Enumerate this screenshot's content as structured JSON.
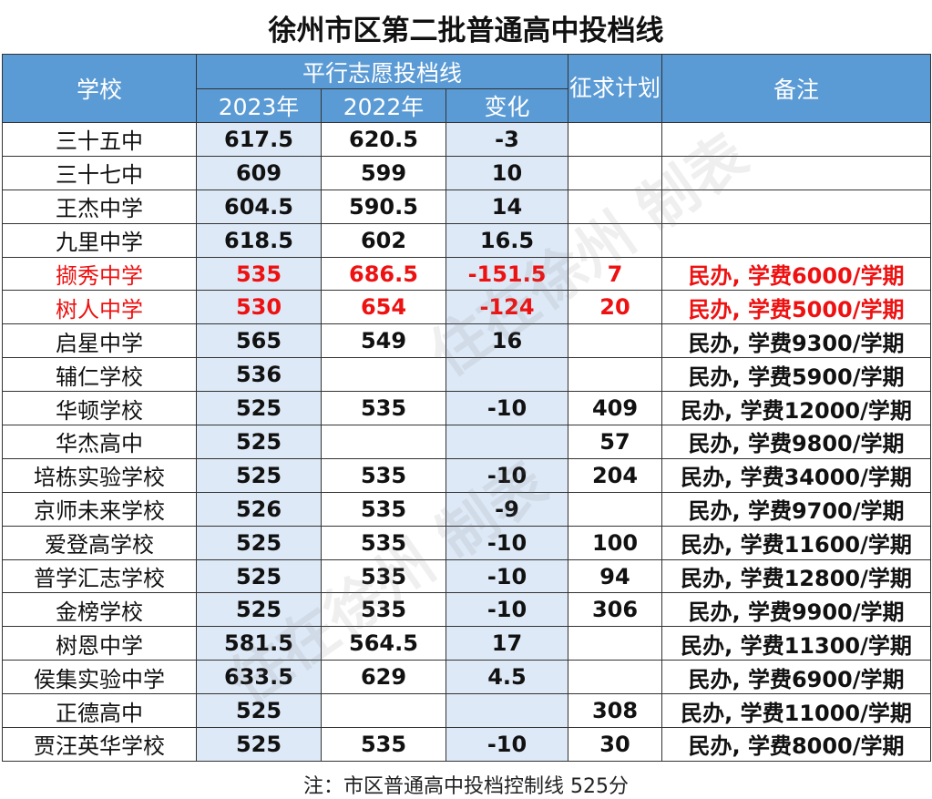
{
  "title": "徐州市区第二批普通高中投档线",
  "header": {
    "school": "学校",
    "group": "平行志愿投档线",
    "y2023": "2023年",
    "y2022": "2022年",
    "change": "变化",
    "plan": "征求计划",
    "note": "备注"
  },
  "rows": [
    {
      "school": "三十五中",
      "y2023": "617.5",
      "y2022": "620.5",
      "change": "-3",
      "plan": "",
      "note": ""
    },
    {
      "school": "三十七中",
      "y2023": "609",
      "y2022": "599",
      "change": "10",
      "plan": "",
      "note": ""
    },
    {
      "school": "王杰中学",
      "y2023": "604.5",
      "y2022": "590.5",
      "change": "14",
      "plan": "",
      "note": ""
    },
    {
      "school": "九里中学",
      "y2023": "618.5",
      "y2022": "602",
      "change": "16.5",
      "plan": "",
      "note": ""
    },
    {
      "school": "撷秀中学",
      "y2023": "535",
      "y2022": "686.5",
      "change": "-151.5",
      "plan": "7",
      "note": "民办, 学费6000/学期"
    },
    {
      "school": "树人中学",
      "y2023": "530",
      "y2022": "654",
      "change": "-124",
      "plan": "20",
      "note": "民办, 学费5000/学期"
    },
    {
      "school": "启星中学",
      "y2023": "565",
      "y2022": "549",
      "change": "16",
      "plan": "",
      "note": "民办, 学费9300/学期"
    },
    {
      "school": "辅仁学校",
      "y2023": "536",
      "y2022": "",
      "change": "",
      "plan": "",
      "note": "民办, 学费5900/学期"
    },
    {
      "school": "华顿学校",
      "y2023": "525",
      "y2022": "535",
      "change": "-10",
      "plan": "409",
      "note": "民办, 学费12000/学期"
    },
    {
      "school": "华杰高中",
      "y2023": "525",
      "y2022": "",
      "change": "",
      "plan": "57",
      "note": "民办, 学费9800/学期"
    },
    {
      "school": "培栋实验学校",
      "y2023": "525",
      "y2022": "535",
      "change": "-10",
      "plan": "204",
      "note": "民办, 学费34000/学期"
    },
    {
      "school": "京师未来学校",
      "y2023": "526",
      "y2022": "535",
      "change": "-9",
      "plan": "",
      "note": "民办, 学费9700/学期"
    },
    {
      "school": "爱登高学校",
      "y2023": "525",
      "y2022": "535",
      "change": "-10",
      "plan": "100",
      "note": "民办, 学费11600/学期"
    },
    {
      "school": "普学汇志学校",
      "y2023": "525",
      "y2022": "535",
      "change": "-10",
      "plan": "94",
      "note": "民办, 学费12800/学期"
    },
    {
      "school": "金榜学校",
      "y2023": "525",
      "y2022": "535",
      "change": "-10",
      "plan": "306",
      "note": "民办, 学费9900/学期"
    },
    {
      "school": "树恩中学",
      "y2023": "581.5",
      "y2022": "564.5",
      "change": "17",
      "plan": "",
      "note": "民办, 学费11300/学期"
    },
    {
      "school": "侯集实验中学",
      "y2023": "633.5",
      "y2022": "629",
      "change": "4.5",
      "plan": "",
      "note": "民办, 学费6900/学期"
    },
    {
      "school": "正德高中",
      "y2023": "525",
      "y2022": "",
      "change": "",
      "plan": "308",
      "note": "民办, 学费11000/学期"
    },
    {
      "school": "贾汪英华学校",
      "y2023": "525",
      "y2022": "535",
      "change": "-10",
      "plan": "30",
      "note": "民办, 学费8000/学期"
    }
  ],
  "highlight_rows": [
    4,
    5
  ],
  "colors": {
    "header": "#5b9bd5",
    "highlight_col": "#dde9f6",
    "highlight_text": "#ee1111"
  },
  "watermark": "住在徐州 制表",
  "footer": "注：市区普通高中投档控制线 525分"
}
